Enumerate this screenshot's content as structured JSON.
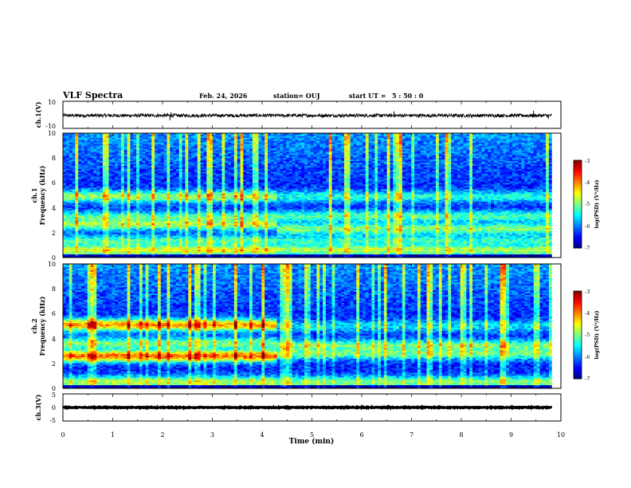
{
  "chart_data": {
    "type": "heatmap",
    "title": "VLF Spectra",
    "date": "Feb. 24, 2026",
    "station": "station= OUJ",
    "start_label": "start  UT =",
    "start_time": "5 : 50 : 0",
    "xlabel": "Time  (min)",
    "xlim": [
      0,
      10
    ],
    "xticks": [
      "0",
      "1",
      "2",
      "3",
      "4",
      "5",
      "6",
      "7",
      "8",
      "9",
      "10"
    ],
    "panels": [
      {
        "id": "ch1_waveform",
        "type": "line",
        "ylabel": "ch.1(V)",
        "ylim": [
          -10,
          10
        ],
        "yticks": [
          "10",
          "-10"
        ],
        "baseline": -0.5,
        "noise": 1.2,
        "spikes": [
          {
            "t": 2.15,
            "v": -4
          },
          {
            "t": 2.17,
            "v": 2
          },
          {
            "t": 6.65,
            "v": 2.5
          },
          {
            "t": 8.2,
            "v": -2
          },
          {
            "t": 9.45,
            "v": 3
          },
          {
            "t": 9.75,
            "v": -3
          }
        ]
      },
      {
        "id": "ch1_spectrogram",
        "type": "heatmap",
        "ylabel": "ch.1",
        "ylabel2": "Frequency  (kHz)",
        "ylim": [
          0,
          10
        ],
        "yticks": [
          "0",
          "2",
          "4",
          "6",
          "8",
          "10"
        ],
        "t_max": 9.82,
        "zlim": [
          -7,
          -3
        ],
        "colorbar_label": "log(PSD) (V²/Hz)",
        "colorbar_ticks": [
          "-3",
          "-4",
          "-5",
          "-6",
          "-7"
        ],
        "bands_before": [
          {
            "f": 0.6,
            "v": -4.6
          },
          {
            "f": 1.3,
            "v": -5.2
          },
          {
            "f": 2.7,
            "v": -4.8
          },
          {
            "f": 3.2,
            "v": -5.1
          },
          {
            "f": 4.9,
            "v": -4.9
          }
        ],
        "bands_after": [
          {
            "f": 0.6,
            "v": -4.8
          },
          {
            "f": 1.3,
            "v": -5.3
          },
          {
            "f": 2.3,
            "v": -5.0
          },
          {
            "f": 3.3,
            "v": -5.2
          },
          {
            "f": 4.9,
            "v": -5.4
          }
        ],
        "change_time": 4.3
      },
      {
        "id": "ch2_spectrogram",
        "type": "heatmap",
        "ylabel": "ch.2",
        "ylabel2": "Frequency  (kHz)",
        "ylim": [
          0,
          10
        ],
        "yticks": [
          "0",
          "2",
          "4",
          "6",
          "8",
          "10"
        ],
        "t_max": 9.82,
        "zlim": [
          -7,
          -3
        ],
        "colorbar_label": "log(PSD) (V²/Hz)",
        "colorbar_ticks": [
          "-3",
          "-4",
          "-5",
          "-6",
          "-7"
        ],
        "bands_before": [
          {
            "f": 0.5,
            "v": -4.8
          },
          {
            "f": 2.6,
            "v": -3.9
          },
          {
            "f": 3.6,
            "v": -5.0
          },
          {
            "f": 5.1,
            "v": -4.1
          }
        ],
        "bands_after": [
          {
            "f": 0.5,
            "v": -5.0
          },
          {
            "f": 2.8,
            "v": -5.1
          },
          {
            "f": 3.4,
            "v": -5.0
          },
          {
            "f": 5.0,
            "v": -5.6
          }
        ],
        "change_time": 4.3
      },
      {
        "id": "ch3_waveform",
        "type": "line",
        "ylabel": "ch.3(V)",
        "ylim": [
          -5,
          5
        ],
        "yticks": [
          "5",
          "0",
          "-5"
        ],
        "baseline": 0,
        "noise": 0.15,
        "spikes": []
      }
    ]
  }
}
